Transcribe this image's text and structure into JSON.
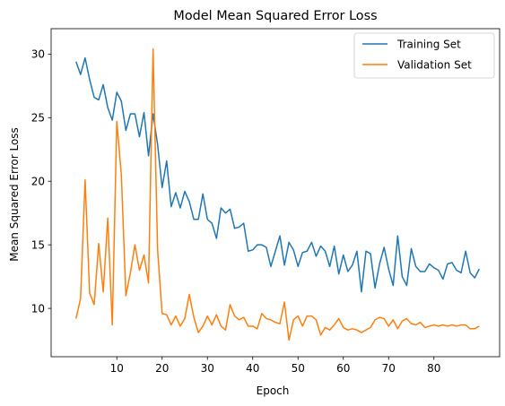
{
  "chart_data": {
    "type": "line",
    "title": "Model Mean Squared Error Loss",
    "xlabel": "Epoch",
    "ylabel": "Mean Squared Error Loss",
    "xlim": [
      -4.5,
      94.5
    ],
    "ylim": [
      6.2,
      32.0
    ],
    "xticks": [
      10,
      20,
      30,
      40,
      50,
      60,
      70,
      80
    ],
    "yticks": [
      10,
      15,
      20,
      25,
      30
    ],
    "grid": false,
    "legend_position": "top-right",
    "series": [
      {
        "name": "Training Set",
        "color": "#1f77b4",
        "values": [
          29.4,
          28.4,
          29.7,
          28.0,
          26.6,
          26.4,
          27.6,
          25.8,
          24.8,
          27.0,
          26.3,
          24.0,
          25.3,
          25.3,
          23.5,
          25.4,
          22.0,
          25.3,
          22.9,
          19.5,
          21.6,
          18.0,
          19.1,
          17.9,
          19.2,
          18.4,
          17.0,
          17.0,
          19.0,
          17.0,
          16.7,
          15.5,
          17.9,
          17.5,
          17.8,
          16.3,
          16.4,
          16.7,
          14.5,
          14.6,
          15.0,
          15.0,
          14.8,
          13.3,
          14.5,
          15.7,
          13.4,
          15.2,
          14.6,
          13.3,
          14.4,
          14.5,
          15.2,
          14.1,
          14.9,
          14.5,
          13.3,
          14.9,
          12.7,
          14.2,
          12.9,
          13.4,
          14.5,
          11.3,
          14.5,
          14.3,
          11.6,
          13.5,
          14.8,
          13.1,
          11.8,
          15.7,
          12.5,
          11.8,
          14.7,
          13.3,
          12.9,
          12.9,
          13.5,
          13.2,
          13.0,
          12.3,
          13.5,
          13.6,
          13.0,
          12.8,
          14.5,
          12.8,
          12.4,
          13.1
        ]
      },
      {
        "name": "Validation Set",
        "color": "#ff7f0e",
        "values": [
          9.2,
          10.8,
          20.1,
          11.2,
          10.3,
          15.1,
          11.3,
          17.1,
          8.7,
          24.7,
          20.5,
          11.0,
          12.8,
          15.0,
          13.0,
          14.2,
          12.0,
          30.4,
          14.6,
          9.6,
          9.5,
          8.7,
          9.4,
          8.6,
          9.2,
          11.1,
          9.3,
          8.1,
          8.6,
          9.4,
          8.7,
          9.5,
          8.6,
          8.3,
          10.3,
          9.4,
          9.1,
          9.3,
          8.6,
          8.6,
          8.4,
          9.6,
          9.2,
          9.1,
          8.9,
          8.8,
          10.5,
          7.5,
          9.1,
          9.4,
          8.6,
          9.4,
          9.4,
          9.1,
          7.9,
          8.5,
          8.3,
          8.7,
          9.2,
          8.5,
          8.3,
          8.4,
          8.3,
          8.1,
          8.3,
          8.5,
          9.1,
          9.3,
          9.2,
          8.6,
          9.1,
          8.4,
          9.0,
          9.2,
          8.8,
          8.7,
          8.9,
          8.5,
          8.6,
          8.7,
          8.6,
          8.7,
          8.6,
          8.7,
          8.6,
          8.7,
          8.7,
          8.4,
          8.4,
          8.6
        ]
      }
    ]
  }
}
